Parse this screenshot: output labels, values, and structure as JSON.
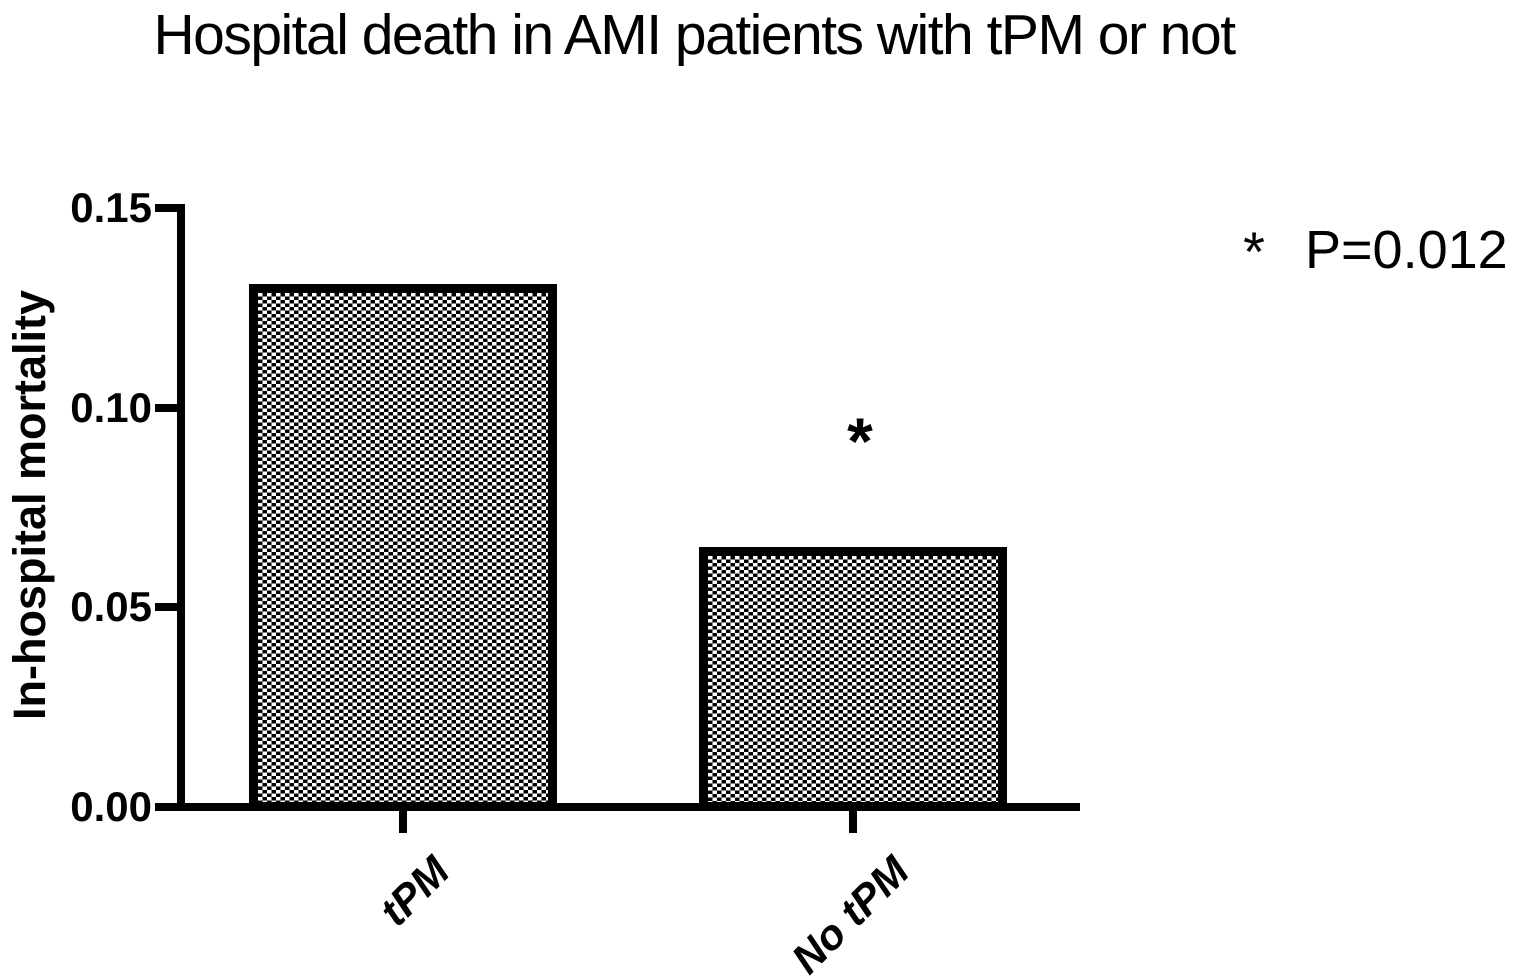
{
  "figure": {
    "background_color": "#ffffff",
    "ink_color": "#000000"
  },
  "chart_data": {
    "type": "bar",
    "title": "Hospital death in AMI patients with tPM or not",
    "xlabel": "",
    "ylabel": "In-hospital mortality",
    "categories": [
      "tPM",
      "No tPM"
    ],
    "values": [
      0.13,
      0.064
    ],
    "ylim": [
      0,
      0.15
    ],
    "yticks": [
      0.0,
      0.05,
      0.1,
      0.15
    ],
    "ytick_labels": [
      "0.00",
      "0.05",
      "0.10",
      "0.15"
    ],
    "grid": false,
    "legend_position": "top-right",
    "bar_style": {
      "fill_pattern": "checkerboard",
      "pattern_color": "#000000",
      "pattern_background": "#ffffff",
      "border_color": "#000000"
    },
    "significance": {
      "marker": "*",
      "marked_category": "No tPM",
      "legend_marker": "*",
      "legend_text": "P=0.012"
    }
  }
}
